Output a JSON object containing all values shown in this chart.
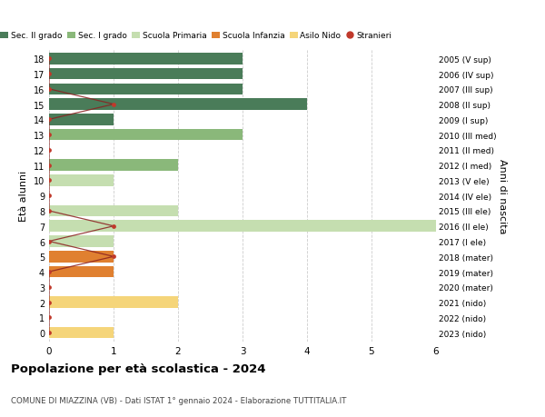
{
  "ages": [
    18,
    17,
    16,
    15,
    14,
    13,
    12,
    11,
    10,
    9,
    8,
    7,
    6,
    5,
    4,
    3,
    2,
    1,
    0
  ],
  "right_labels": [
    "2005 (V sup)",
    "2006 (IV sup)",
    "2007 (III sup)",
    "2008 (II sup)",
    "2009 (I sup)",
    "2010 (III med)",
    "2011 (II med)",
    "2012 (I med)",
    "2013 (V ele)",
    "2014 (IV ele)",
    "2015 (III ele)",
    "2016 (II ele)",
    "2017 (I ele)",
    "2018 (mater)",
    "2019 (mater)",
    "2020 (mater)",
    "2021 (nido)",
    "2022 (nido)",
    "2023 (nido)"
  ],
  "bar_values": [
    3,
    3,
    3,
    4,
    1,
    3,
    0,
    2,
    1,
    0,
    2,
    6,
    1,
    1,
    1,
    0,
    2,
    0,
    1
  ],
  "bar_colors": [
    "#4a7c59",
    "#4a7c59",
    "#4a7c59",
    "#4a7c59",
    "#4a7c59",
    "#8ab87a",
    "#8ab87a",
    "#8ab87a",
    "#c5deb0",
    "#c5deb0",
    "#c5deb0",
    "#c5deb0",
    "#c5deb0",
    "#e08030",
    "#e08030",
    "#e08030",
    "#f5d57a",
    "#f5d57a",
    "#f5d57a"
  ],
  "stranieri_ages": [
    18,
    17,
    16,
    15,
    14,
    13,
    12,
    11,
    10,
    9,
    8,
    7,
    6,
    5,
    4,
    3,
    2,
    1,
    0
  ],
  "stranieri_values": [
    0,
    0,
    0,
    1,
    0,
    0,
    0,
    0,
    0,
    0,
    0,
    1,
    0,
    1,
    0,
    0,
    0,
    0,
    0
  ],
  "legend_labels": [
    "Sec. II grado",
    "Sec. I grado",
    "Scuola Primaria",
    "Scuola Infanzia",
    "Asilo Nido",
    "Stranieri"
  ],
  "legend_colors": [
    "#4a7c59",
    "#8ab87a",
    "#c5deb0",
    "#e08030",
    "#f5d57a",
    "#c0392b"
  ],
  "title": "Popolazione per età scolastica - 2024",
  "subtitle": "COMUNE DI MIAZZINA (VB) - Dati ISTAT 1° gennaio 2024 - Elaborazione TUTTITALIA.IT",
  "ylabel": "Età alunni",
  "right_ylabel": "Anni di nascita",
  "xlim": [
    0,
    6
  ],
  "background_color": "#ffffff",
  "grid_color": "#cccccc",
  "stranieri_color": "#c0392b",
  "stranieri_line_color": "#8b2020"
}
